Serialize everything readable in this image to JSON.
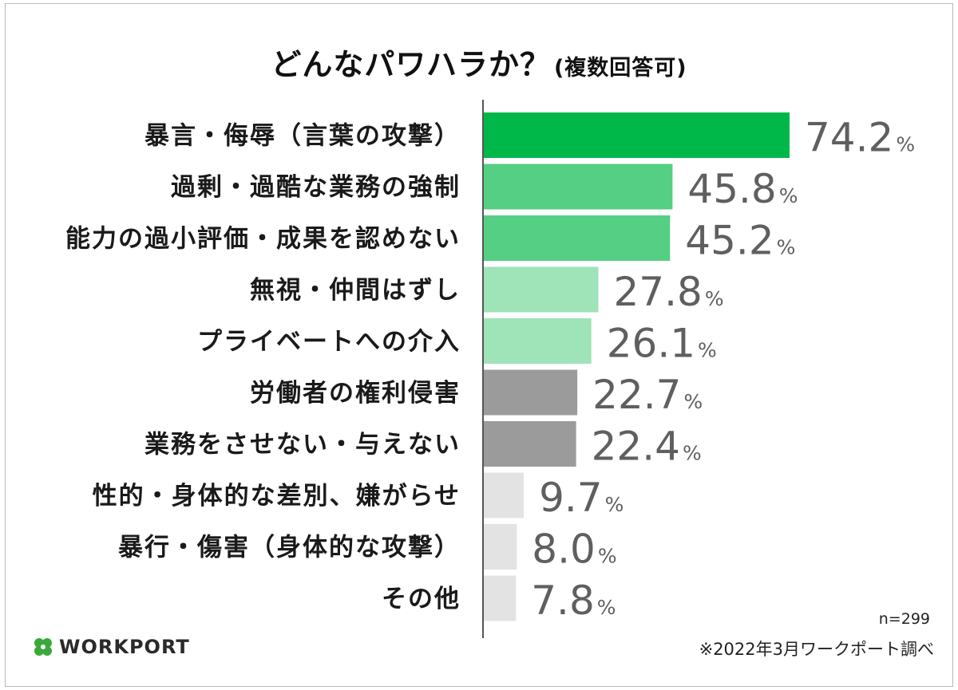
{
  "title": "どんなパワハラか？",
  "title_suffix": "(複数回答可)",
  "sample_size": "n=299",
  "source": "※2022年3月ワークポート調べ",
  "logo_text": "WORKPORT",
  "colors": {
    "dark_green": "#00b84a",
    "mid_green": "#55cf84",
    "light_green": "#9fe3b8",
    "dark_gray": "#9b9b9b",
    "light_gray": "#e3e3e3",
    "axis": "#555555",
    "logo_green": "#3aa83a"
  },
  "chart_data": {
    "type": "bar",
    "orientation": "horizontal",
    "title": "どんなパワハラか？(複数回答可)",
    "unit": "%",
    "xlim": [
      0,
      100
    ],
    "categories": [
      "暴言・侮辱（言葉の攻撃）",
      "過剰・過酷な業務の強制",
      "能力の過小評価・成果を認めない",
      "無視・仲間はずし",
      "プライベートへの介入",
      "労働者の権利侵害",
      "業務をさせない・与えない",
      "性的・身体的な差別、嫌がらせ",
      "暴行・傷害（身体的な攻撃）",
      "その他"
    ],
    "values": [
      74.2,
      45.8,
      45.2,
      27.8,
      26.1,
      22.7,
      22.4,
      9.7,
      8.0,
      7.8
    ],
    "value_labels": [
      "74.2",
      "45.8",
      "45.2",
      "27.8",
      "26.1",
      "22.7",
      "22.4",
      "9.7",
      "8.0",
      "7.8"
    ],
    "bar_colors": [
      "#00b84a",
      "#55cf84",
      "#55cf84",
      "#9fe3b8",
      "#9fe3b8",
      "#9b9b9b",
      "#9b9b9b",
      "#e3e3e3",
      "#e3e3e3",
      "#e3e3e3"
    ]
  }
}
